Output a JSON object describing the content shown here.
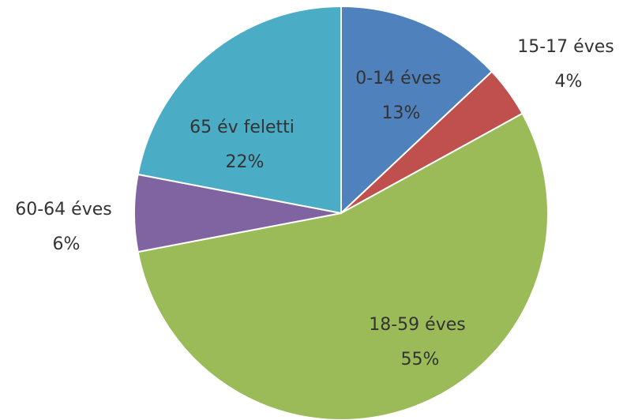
{
  "chart_data": {
    "type": "pie",
    "title": "",
    "start_at": "top",
    "direction": "clockwise",
    "legend": "none",
    "slices": [
      {
        "label": "0-14 éves",
        "value": 13,
        "value_label": "13%",
        "color": "#4F81BD"
      },
      {
        "label": "15-17 éves",
        "value": 4,
        "value_label": "4%",
        "color": "#C0504D"
      },
      {
        "label": "18-59 éves",
        "value": 55,
        "value_label": "55%",
        "color": "#9BBB59"
      },
      {
        "label": "60-64 éves",
        "value": 6,
        "value_label": "6%",
        "color": "#8064A2"
      },
      {
        "label": "65 év feletti",
        "value": 22,
        "value_label": "22%",
        "color": "#4BACC6"
      }
    ]
  }
}
